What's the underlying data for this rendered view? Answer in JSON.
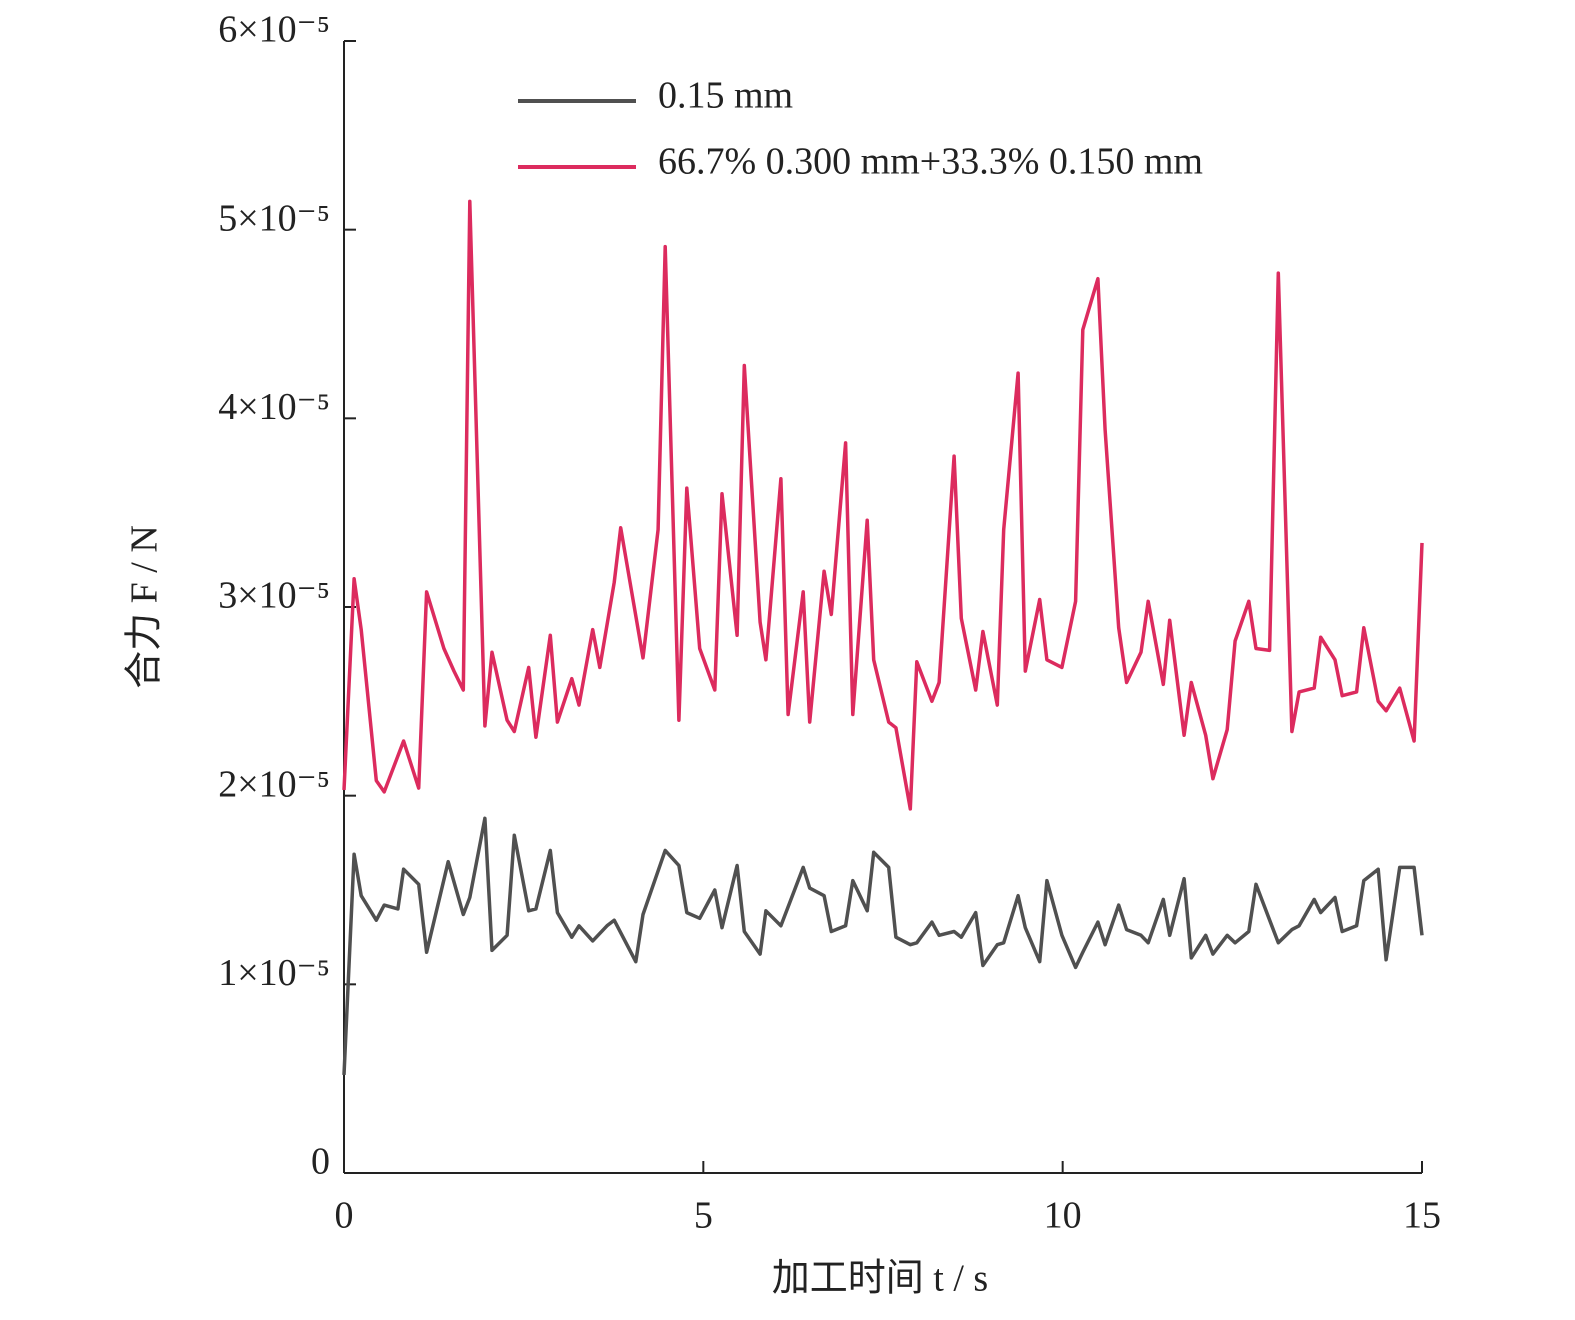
{
  "chart_data": {
    "type": "line",
    "xlabel": "加工时间 t / s",
    "ylabel": "合力 F / N",
    "xlim": [
      0,
      15
    ],
    "xticks": [
      0,
      5,
      10,
      15
    ],
    "ylim": [
      0,
      6e-05
    ],
    "yticks": [
      0,
      {
        "value": 1e-05,
        "label": "1×10⁻⁵"
      },
      {
        "value": 2e-05,
        "label": "2×10⁻⁵"
      },
      {
        "value": 3e-05,
        "label": "3×10⁻⁵"
      },
      {
        "value": 4e-05,
        "label": "4×10⁻⁵"
      },
      {
        "value": 5e-05,
        "label": "5×10⁻⁵"
      },
      {
        "value": 6e-05,
        "label": "6×10⁻⁵"
      }
    ],
    "legend": "upper center",
    "series": [
      {
        "name": "0.15 mm",
        "color": "#505050",
        "x": [
          0,
          0.14,
          0.24,
          0.45,
          0.56,
          0.75,
          0.83,
          1.04,
          1.15,
          1.45,
          1.66,
          1.75,
          1.96,
          2.06,
          2.27,
          2.37,
          2.57,
          2.67,
          2.87,
          2.97,
          3.17,
          3.27,
          3.46,
          3.66,
          3.76,
          4.06,
          4.16,
          4.47,
          4.66,
          4.77,
          4.95,
          5.16,
          5.26,
          5.47,
          5.57,
          5.79,
          5.87,
          6.08,
          6.39,
          6.48,
          6.68,
          6.78,
          6.98,
          7.08,
          7.28,
          7.37,
          7.58,
          7.68,
          7.88,
          7.97,
          8.18,
          8.28,
          8.49,
          8.59,
          8.79,
          8.89,
          9.09,
          9.18,
          9.38,
          9.48,
          9.68,
          9.78,
          9.99,
          10.18,
          10.28,
          10.49,
          10.59,
          10.78,
          10.89,
          11.09,
          11.19,
          11.4,
          11.49,
          11.69,
          11.79,
          11.99,
          12.09,
          12.29,
          12.4,
          12.59,
          12.69,
          13.0,
          13.19,
          13.29,
          13.5,
          13.59,
          13.79,
          13.89,
          14.09,
          14.19,
          14.39,
          14.5,
          14.69,
          14.89,
          15.0
        ],
        "values": [
          5.2e-06,
          1.69e-05,
          1.47e-05,
          1.34e-05,
          1.42e-05,
          1.4e-05,
          1.61e-05,
          1.53e-05,
          1.17e-05,
          1.65e-05,
          1.37e-05,
          1.46e-05,
          1.88e-05,
          1.18e-05,
          1.26e-05,
          1.79e-05,
          1.39e-05,
          1.4e-05,
          1.71e-05,
          1.38e-05,
          1.25e-05,
          1.31e-05,
          1.23e-05,
          1.31e-05,
          1.34e-05,
          1.12e-05,
          1.37e-05,
          1.71e-05,
          1.63e-05,
          1.38e-05,
          1.35e-05,
          1.5e-05,
          1.3e-05,
          1.63e-05,
          1.28e-05,
          1.16e-05,
          1.39e-05,
          1.31e-05,
          1.62e-05,
          1.51e-05,
          1.47e-05,
          1.28e-05,
          1.31e-05,
          1.55e-05,
          1.39e-05,
          1.7e-05,
          1.62e-05,
          1.25e-05,
          1.21e-05,
          1.22e-05,
          1.33e-05,
          1.26e-05,
          1.28e-05,
          1.25e-05,
          1.38e-05,
          1.1e-05,
          1.21e-05,
          1.22e-05,
          1.47e-05,
          1.3e-05,
          1.12e-05,
          1.55e-05,
          1.26e-05,
          1.09e-05,
          1.17e-05,
          1.33e-05,
          1.21e-05,
          1.42e-05,
          1.29e-05,
          1.26e-05,
          1.22e-05,
          1.45e-05,
          1.26e-05,
          1.56e-05,
          1.14e-05,
          1.26e-05,
          1.16e-05,
          1.26e-05,
          1.22e-05,
          1.28e-05,
          1.53e-05,
          1.22e-05,
          1.29e-05,
          1.31e-05,
          1.45e-05,
          1.38e-05,
          1.46e-05,
          1.28e-05,
          1.31e-05,
          1.55e-05,
          1.61e-05,
          1.13e-05,
          1.62e-05,
          1.62e-05,
          1.26e-05
        ]
      },
      {
        "name": "66.7% 0.300 mm+33.3% 0.150 mm",
        "color": "#dc2b5e",
        "x": [
          0,
          0.14,
          0.24,
          0.45,
          0.56,
          0.83,
          1.04,
          1.15,
          1.39,
          1.53,
          1.66,
          1.75,
          1.96,
          2.06,
          2.27,
          2.37,
          2.57,
          2.67,
          2.87,
          2.97,
          3.17,
          3.27,
          3.46,
          3.56,
          3.76,
          3.85,
          4.16,
          4.37,
          4.47,
          4.66,
          4.77,
          4.95,
          5.16,
          5.26,
          5.47,
          5.57,
          5.79,
          5.87,
          6.08,
          6.18,
          6.39,
          6.48,
          6.68,
          6.78,
          6.98,
          7.08,
          7.28,
          7.37,
          7.58,
          7.68,
          7.88,
          7.97,
          8.18,
          8.28,
          8.49,
          8.59,
          8.79,
          8.89,
          9.09,
          9.18,
          9.38,
          9.48,
          9.68,
          9.78,
          9.99,
          10.18,
          10.28,
          10.49,
          10.59,
          10.78,
          10.89,
          11.09,
          11.19,
          11.4,
          11.49,
          11.69,
          11.79,
          11.99,
          12.09,
          12.29,
          12.4,
          12.59,
          12.69,
          12.88,
          13.0,
          13.19,
          13.29,
          13.5,
          13.59,
          13.79,
          13.89,
          14.09,
          14.19,
          14.39,
          14.5,
          14.69,
          14.89,
          15.0
        ],
        "values": [
          2.03e-05,
          3.15e-05,
          2.88e-05,
          2.08e-05,
          2.02e-05,
          2.29e-05,
          2.04e-05,
          3.08e-05,
          2.78e-05,
          2.66e-05,
          2.56e-05,
          5.15e-05,
          2.37e-05,
          2.76e-05,
          2.4e-05,
          2.34e-05,
          2.68e-05,
          2.31e-05,
          2.85e-05,
          2.39e-05,
          2.62e-05,
          2.48e-05,
          2.88e-05,
          2.68e-05,
          3.13e-05,
          3.42e-05,
          2.73e-05,
          3.41e-05,
          4.91e-05,
          2.4e-05,
          3.63e-05,
          2.78e-05,
          2.56e-05,
          3.6e-05,
          2.85e-05,
          4.28e-05,
          2.92e-05,
          2.72e-05,
          3.68e-05,
          2.43e-05,
          3.08e-05,
          2.39e-05,
          3.19e-05,
          2.96e-05,
          3.87e-05,
          2.43e-05,
          3.46e-05,
          2.72e-05,
          2.39e-05,
          2.36e-05,
          1.93e-05,
          2.71e-05,
          2.5e-05,
          2.6e-05,
          3.8e-05,
          2.94e-05,
          2.56e-05,
          2.87e-05,
          2.48e-05,
          3.41e-05,
          4.24e-05,
          2.66e-05,
          3.04e-05,
          2.72e-05,
          2.68e-05,
          3.03e-05,
          4.47e-05,
          4.74e-05,
          3.94e-05,
          2.89e-05,
          2.6e-05,
          2.76e-05,
          3.03e-05,
          2.59e-05,
          2.93e-05,
          2.32e-05,
          2.6e-05,
          2.32e-05,
          2.09e-05,
          2.35e-05,
          2.82e-05,
          3.03e-05,
          2.78e-05,
          2.77e-05,
          4.77e-05,
          2.34e-05,
          2.55e-05,
          2.57e-05,
          2.84e-05,
          2.72e-05,
          2.53e-05,
          2.55e-05,
          2.89e-05,
          2.5e-05,
          2.45e-05,
          2.57e-05,
          2.29e-05,
          3.34e-05
        ]
      }
    ]
  }
}
